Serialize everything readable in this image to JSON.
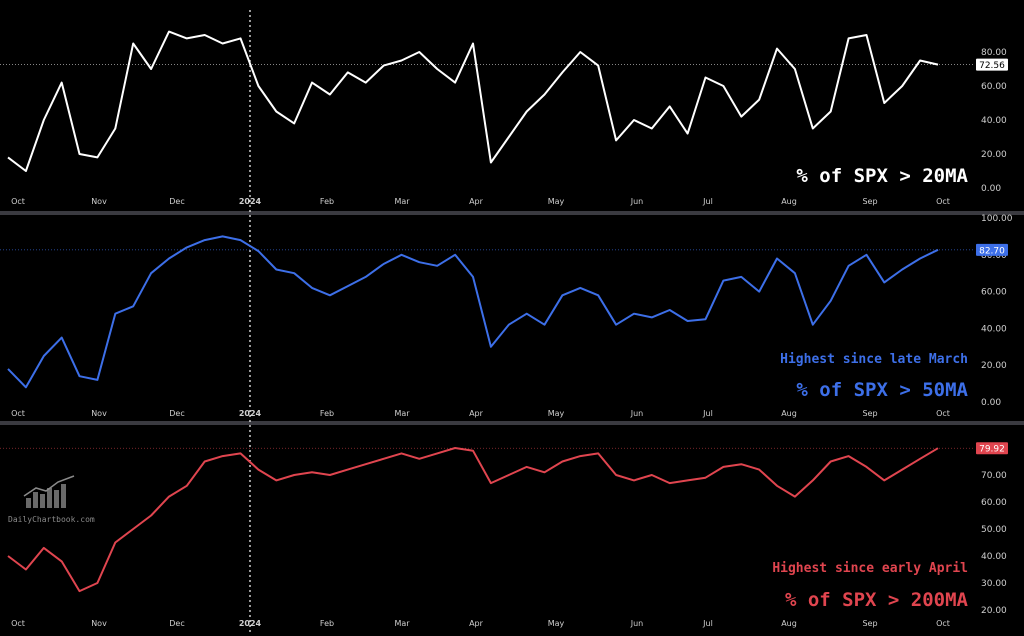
{
  "brand": "DailyChartbook.com",
  "x_labels": [
    "Oct",
    "Nov",
    "Dec",
    "2024",
    "Feb",
    "Mar",
    "Apr",
    "May",
    "Jun",
    "Jul",
    "Aug",
    "Sep",
    "Oct"
  ],
  "chart_data": [
    {
      "type": "line",
      "title": "% of SPX > 20MA",
      "subtitle": "",
      "color": "#ffffff",
      "last_value": "72.56",
      "ylim": [
        0,
        100
      ],
      "yticks": [
        "0.00",
        "20.00",
        "40.00",
        "60.00",
        "80.00"
      ],
      "x_labels": [
        "Oct",
        "Nov",
        "Dec",
        "2024",
        "Feb",
        "Mar",
        "Apr",
        "May",
        "Jun",
        "Jul",
        "Aug",
        "Sep",
        "Oct"
      ],
      "x": [
        "2023-10-01",
        "2023-10-08",
        "2023-10-15",
        "2023-10-22",
        "2023-10-29",
        "2023-11-05",
        "2023-11-12",
        "2023-11-19",
        "2023-11-26",
        "2023-12-03",
        "2023-12-10",
        "2023-12-17",
        "2023-12-24",
        "2023-12-31",
        "2024-01-07",
        "2024-01-14",
        "2024-01-21",
        "2024-01-28",
        "2024-02-04",
        "2024-02-11",
        "2024-02-18",
        "2024-02-25",
        "2024-03-03",
        "2024-03-10",
        "2024-03-17",
        "2024-03-24",
        "2024-03-31",
        "2024-04-07",
        "2024-04-14",
        "2024-04-21",
        "2024-04-28",
        "2024-05-05",
        "2024-05-12",
        "2024-05-19",
        "2024-05-26",
        "2024-06-02",
        "2024-06-09",
        "2024-06-16",
        "2024-06-23",
        "2024-06-30",
        "2024-07-07",
        "2024-07-14",
        "2024-07-21",
        "2024-07-28",
        "2024-08-04",
        "2024-08-11",
        "2024-08-18",
        "2024-08-25",
        "2024-09-01",
        "2024-09-08",
        "2024-09-15",
        "2024-09-22",
        "2024-09-29"
      ],
      "values": [
        18,
        10,
        40,
        62,
        20,
        18,
        35,
        85,
        70,
        92,
        88,
        90,
        85,
        88,
        60,
        45,
        38,
        62,
        55,
        68,
        62,
        72,
        75,
        80,
        70,
        62,
        85,
        15,
        30,
        45,
        55,
        68,
        80,
        72,
        28,
        40,
        35,
        48,
        32,
        65,
        60,
        42,
        52,
        82,
        70,
        35,
        45,
        88,
        90,
        50,
        60,
        75,
        72.56
      ]
    },
    {
      "type": "line",
      "title": "% of SPX > 50MA",
      "subtitle": "Highest since late March",
      "color": "#3d6fe8",
      "last_value": "82.70",
      "ylim": [
        0,
        100
      ],
      "yticks": [
        "0.00",
        "20.00",
        "40.00",
        "60.00",
        "80.00",
        "100.00"
      ],
      "x_labels": [
        "Oct",
        "Nov",
        "Dec",
        "2024",
        "Feb",
        "Mar",
        "Apr",
        "May",
        "Jun",
        "Jul",
        "Aug",
        "Sep",
        "Oct"
      ],
      "x": [
        "2023-10-01",
        "2023-10-08",
        "2023-10-15",
        "2023-10-22",
        "2023-10-29",
        "2023-11-05",
        "2023-11-12",
        "2023-11-19",
        "2023-11-26",
        "2023-12-03",
        "2023-12-10",
        "2023-12-17",
        "2023-12-24",
        "2023-12-31",
        "2024-01-07",
        "2024-01-14",
        "2024-01-21",
        "2024-01-28",
        "2024-02-04",
        "2024-02-11",
        "2024-02-18",
        "2024-02-25",
        "2024-03-03",
        "2024-03-10",
        "2024-03-17",
        "2024-03-24",
        "2024-03-31",
        "2024-04-07",
        "2024-04-14",
        "2024-04-21",
        "2024-04-28",
        "2024-05-05",
        "2024-05-12",
        "2024-05-19",
        "2024-05-26",
        "2024-06-02",
        "2024-06-09",
        "2024-06-16",
        "2024-06-23",
        "2024-06-30",
        "2024-07-07",
        "2024-07-14",
        "2024-07-21",
        "2024-07-28",
        "2024-08-04",
        "2024-08-11",
        "2024-08-18",
        "2024-08-25",
        "2024-09-01",
        "2024-09-08",
        "2024-09-15",
        "2024-09-22",
        "2024-09-29"
      ],
      "values": [
        18,
        8,
        25,
        35,
        14,
        12,
        48,
        52,
        70,
        78,
        84,
        88,
        90,
        88,
        82,
        72,
        70,
        62,
        58,
        63,
        68,
        75,
        80,
        76,
        74,
        80,
        68,
        30,
        42,
        48,
        42,
        58,
        62,
        58,
        42,
        48,
        46,
        50,
        44,
        45,
        66,
        68,
        60,
        78,
        70,
        42,
        55,
        74,
        80,
        65,
        72,
        78,
        82.7
      ]
    },
    {
      "type": "line",
      "title": "% of SPX > 200MA",
      "subtitle": "Highest since early April",
      "color": "#e0454f",
      "last_value": "79.92",
      "ylim": [
        20,
        80
      ],
      "yticks": [
        "20.00",
        "30.00",
        "40.00",
        "50.00",
        "60.00",
        "70.00"
      ],
      "x_labels": [
        "Oct",
        "Nov",
        "Dec",
        "2024",
        "Feb",
        "Mar",
        "Apr",
        "May",
        "Jun",
        "Jul",
        "Aug",
        "Sep",
        "Oct"
      ],
      "x": [
        "2023-10-01",
        "2023-10-08",
        "2023-10-15",
        "2023-10-22",
        "2023-10-29",
        "2023-11-05",
        "2023-11-12",
        "2023-11-19",
        "2023-11-26",
        "2023-12-03",
        "2023-12-10",
        "2023-12-17",
        "2023-12-24",
        "2023-12-31",
        "2024-01-07",
        "2024-01-14",
        "2024-01-21",
        "2024-01-28",
        "2024-02-04",
        "2024-02-11",
        "2024-02-18",
        "2024-02-25",
        "2024-03-03",
        "2024-03-10",
        "2024-03-17",
        "2024-03-24",
        "2024-03-31",
        "2024-04-07",
        "2024-04-14",
        "2024-04-21",
        "2024-04-28",
        "2024-05-05",
        "2024-05-12",
        "2024-05-19",
        "2024-05-26",
        "2024-06-02",
        "2024-06-09",
        "2024-06-16",
        "2024-06-23",
        "2024-06-30",
        "2024-07-07",
        "2024-07-14",
        "2024-07-21",
        "2024-07-28",
        "2024-08-04",
        "2024-08-11",
        "2024-08-18",
        "2024-08-25",
        "2024-09-01",
        "2024-09-08",
        "2024-09-15",
        "2024-09-22",
        "2024-09-29"
      ],
      "values": [
        40,
        35,
        43,
        38,
        27,
        30,
        45,
        50,
        55,
        62,
        66,
        75,
        77,
        78,
        72,
        68,
        70,
        71,
        70,
        72,
        74,
        76,
        78,
        76,
        78,
        80,
        79,
        67,
        70,
        73,
        71,
        75,
        77,
        78,
        70,
        68,
        70,
        67,
        68,
        69,
        73,
        74,
        72,
        66,
        62,
        68,
        75,
        77,
        73,
        68,
        72,
        76,
        79.92
      ]
    }
  ]
}
